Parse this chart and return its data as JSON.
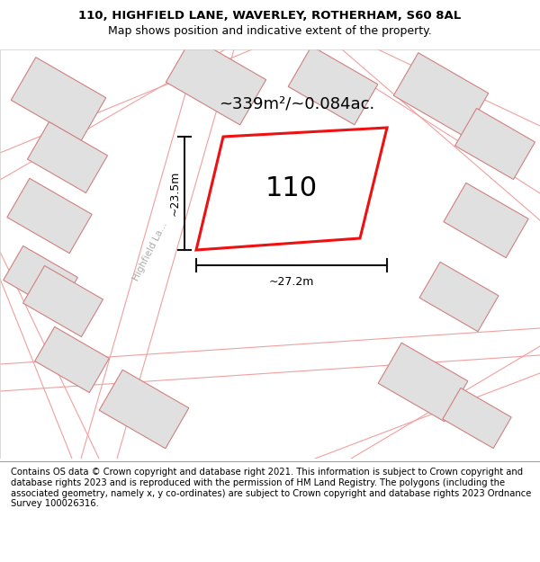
{
  "title_line1": "110, HIGHFIELD LANE, WAVERLEY, ROTHERHAM, S60 8AL",
  "title_line2": "Map shows position and indicative extent of the property.",
  "footer_text": "Contains OS data © Crown copyright and database right 2021. This information is subject to Crown copyright and database rights 2023 and is reproduced with the permission of HM Land Registry. The polygons (including the associated geometry, namely x, y co-ordinates) are subject to Crown copyright and database rights 2023 Ordnance Survey 100026316.",
  "area_label": "~339m²/~0.084ac.",
  "number_label": "110",
  "dim_width": "~27.2m",
  "dim_height": "~23.5m",
  "road_label": "Highfield La...",
  "bg_color": "#ffffff",
  "map_bg": "#ffffff",
  "property_fill": "#ffffff",
  "property_edge_color": "#ee1111",
  "building_fill": "#e0e0e0",
  "road_line_color": "#f0a0a0",
  "dim_line_color": "#111111",
  "title_fontsize": 9.5,
  "footer_fontsize": 7.2,
  "number_fontsize": 22,
  "area_fontsize": 13
}
